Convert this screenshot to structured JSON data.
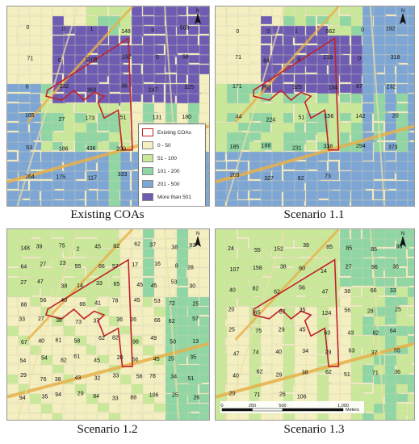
{
  "legend": {
    "items": [
      {
        "label": "Existing COAs",
        "color": "#ffffff",
        "border": "#c0222a"
      },
      {
        "label": "0 - 50",
        "color": "#f4efc0"
      },
      {
        "label": "51 - 100",
        "color": "#c9e89a"
      },
      {
        "label": "101 - 200",
        "color": "#8fd6a4"
      },
      {
        "label": "201 - 500",
        "color": "#7ea6d4"
      },
      {
        "label": "More than 501",
        "color": "#6e5cb2"
      }
    ]
  },
  "north": {
    "letter": "N"
  },
  "panels": [
    {
      "id": "existing",
      "caption": "Existing COAs",
      "labels": [
        "0",
        "0",
        "1",
        "148",
        "0",
        "503",
        "71",
        "0",
        "1105",
        "192",
        "0",
        "58",
        "0",
        "232",
        "363",
        "38",
        "247",
        "325",
        "165",
        "27",
        "173",
        "51",
        "131",
        "180",
        "53",
        "186",
        "436",
        "200",
        "203",
        "270",
        "264",
        "175",
        "117",
        "333",
        "63"
      ]
    },
    {
      "id": "s11",
      "caption": "Scenario 1.1",
      "labels": [
        "0",
        "0",
        "1",
        "562",
        "0",
        "192",
        "71",
        "64",
        "0",
        "218",
        "0",
        "318",
        "171",
        "750",
        "325",
        "134",
        "67",
        "232",
        "44",
        "224",
        "51",
        "156",
        "142",
        "20",
        "185",
        "188",
        "231",
        "338",
        "294",
        "373",
        "203",
        "327",
        "82",
        "73"
      ]
    },
    {
      "id": "s12",
      "caption": "Scenario 1.2",
      "labels": [
        "148",
        "39",
        "75",
        "2",
        "45",
        "82",
        "62",
        "37",
        "38",
        "93",
        "64",
        "27",
        "23",
        "55",
        "66",
        "57",
        "17",
        "16",
        "8",
        "28",
        "27",
        "47",
        "38",
        "14",
        "33",
        "65",
        "45",
        "45",
        "53",
        "30",
        "88",
        "56",
        "40",
        "66",
        "41",
        "78",
        "45",
        "53",
        "72",
        "25",
        "33",
        "27",
        "38",
        "73",
        "37",
        "36",
        "26",
        "66",
        "62",
        "57",
        "67",
        "40",
        "61",
        "58",
        "62",
        "82",
        "98",
        "49",
        "50",
        "13",
        "54",
        "54",
        "82",
        "61",
        "45",
        "20",
        "56",
        "45",
        "25",
        "35",
        "29",
        "76",
        "38",
        "43",
        "32",
        "33",
        "56",
        "78",
        "34",
        "51",
        "94",
        "35",
        "94",
        "29",
        "84",
        "33",
        "88",
        "106",
        "25",
        "26"
      ]
    },
    {
      "id": "s13",
      "caption": "Scenario 1.3",
      "labels": [
        "24",
        "55",
        "152",
        "39",
        "85",
        "85",
        "85",
        "93",
        "107",
        "158",
        "38",
        "60",
        "14",
        "27",
        "96",
        "36",
        "40",
        "82",
        "62",
        "56",
        "47",
        "38",
        "66",
        "33",
        "20",
        "65",
        "87",
        "35",
        "124",
        "56",
        "28",
        "25",
        "25",
        "75",
        "29",
        "45",
        "63",
        "43",
        "82",
        "64",
        "47",
        "74",
        "40",
        "34",
        "29",
        "63",
        "37",
        "55",
        "40",
        "62",
        "29",
        "38",
        "62",
        "51",
        "71",
        "36",
        "29",
        "71",
        "26",
        "106"
      ]
    }
  ],
  "scale": {
    "ticks": [
      "0",
      "250",
      "500",
      "1,000"
    ],
    "unit": "Meters"
  }
}
